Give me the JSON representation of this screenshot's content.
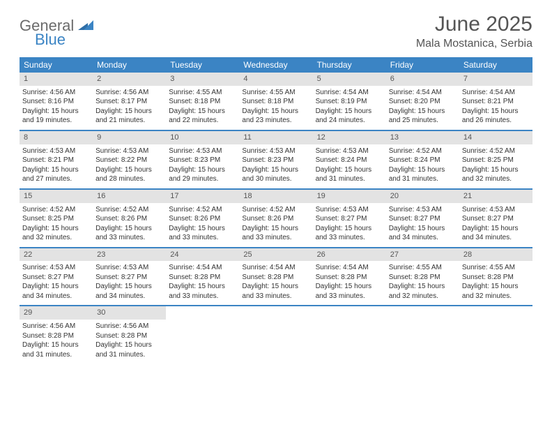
{
  "logo": {
    "part1": "General",
    "part2": "Blue"
  },
  "title": "June 2025",
  "location": "Mala Mostanica, Serbia",
  "colors": {
    "header_bg": "#3b84c4",
    "header_text": "#ffffff",
    "daynum_bg": "#e3e3e3",
    "text": "#333333",
    "title_text": "#555555",
    "logo_gray": "#6b6b6b",
    "logo_blue": "#3b84c4",
    "divider": "#3b84c4"
  },
  "weekdays": [
    "Sunday",
    "Monday",
    "Tuesday",
    "Wednesday",
    "Thursday",
    "Friday",
    "Saturday"
  ],
  "days": [
    {
      "n": 1,
      "sunrise": "4:56 AM",
      "sunset": "8:16 PM",
      "daylight": "15 hours and 19 minutes."
    },
    {
      "n": 2,
      "sunrise": "4:56 AM",
      "sunset": "8:17 PM",
      "daylight": "15 hours and 21 minutes."
    },
    {
      "n": 3,
      "sunrise": "4:55 AM",
      "sunset": "8:18 PM",
      "daylight": "15 hours and 22 minutes."
    },
    {
      "n": 4,
      "sunrise": "4:55 AM",
      "sunset": "8:18 PM",
      "daylight": "15 hours and 23 minutes."
    },
    {
      "n": 5,
      "sunrise": "4:54 AM",
      "sunset": "8:19 PM",
      "daylight": "15 hours and 24 minutes."
    },
    {
      "n": 6,
      "sunrise": "4:54 AM",
      "sunset": "8:20 PM",
      "daylight": "15 hours and 25 minutes."
    },
    {
      "n": 7,
      "sunrise": "4:54 AM",
      "sunset": "8:21 PM",
      "daylight": "15 hours and 26 minutes."
    },
    {
      "n": 8,
      "sunrise": "4:53 AM",
      "sunset": "8:21 PM",
      "daylight": "15 hours and 27 minutes."
    },
    {
      "n": 9,
      "sunrise": "4:53 AM",
      "sunset": "8:22 PM",
      "daylight": "15 hours and 28 minutes."
    },
    {
      "n": 10,
      "sunrise": "4:53 AM",
      "sunset": "8:23 PM",
      "daylight": "15 hours and 29 minutes."
    },
    {
      "n": 11,
      "sunrise": "4:53 AM",
      "sunset": "8:23 PM",
      "daylight": "15 hours and 30 minutes."
    },
    {
      "n": 12,
      "sunrise": "4:53 AM",
      "sunset": "8:24 PM",
      "daylight": "15 hours and 31 minutes."
    },
    {
      "n": 13,
      "sunrise": "4:52 AM",
      "sunset": "8:24 PM",
      "daylight": "15 hours and 31 minutes."
    },
    {
      "n": 14,
      "sunrise": "4:52 AM",
      "sunset": "8:25 PM",
      "daylight": "15 hours and 32 minutes."
    },
    {
      "n": 15,
      "sunrise": "4:52 AM",
      "sunset": "8:25 PM",
      "daylight": "15 hours and 32 minutes."
    },
    {
      "n": 16,
      "sunrise": "4:52 AM",
      "sunset": "8:26 PM",
      "daylight": "15 hours and 33 minutes."
    },
    {
      "n": 17,
      "sunrise": "4:52 AM",
      "sunset": "8:26 PM",
      "daylight": "15 hours and 33 minutes."
    },
    {
      "n": 18,
      "sunrise": "4:52 AM",
      "sunset": "8:26 PM",
      "daylight": "15 hours and 33 minutes."
    },
    {
      "n": 19,
      "sunrise": "4:53 AM",
      "sunset": "8:27 PM",
      "daylight": "15 hours and 33 minutes."
    },
    {
      "n": 20,
      "sunrise": "4:53 AM",
      "sunset": "8:27 PM",
      "daylight": "15 hours and 34 minutes."
    },
    {
      "n": 21,
      "sunrise": "4:53 AM",
      "sunset": "8:27 PM",
      "daylight": "15 hours and 34 minutes."
    },
    {
      "n": 22,
      "sunrise": "4:53 AM",
      "sunset": "8:27 PM",
      "daylight": "15 hours and 34 minutes."
    },
    {
      "n": 23,
      "sunrise": "4:53 AM",
      "sunset": "8:27 PM",
      "daylight": "15 hours and 34 minutes."
    },
    {
      "n": 24,
      "sunrise": "4:54 AM",
      "sunset": "8:28 PM",
      "daylight": "15 hours and 33 minutes."
    },
    {
      "n": 25,
      "sunrise": "4:54 AM",
      "sunset": "8:28 PM",
      "daylight": "15 hours and 33 minutes."
    },
    {
      "n": 26,
      "sunrise": "4:54 AM",
      "sunset": "8:28 PM",
      "daylight": "15 hours and 33 minutes."
    },
    {
      "n": 27,
      "sunrise": "4:55 AM",
      "sunset": "8:28 PM",
      "daylight": "15 hours and 32 minutes."
    },
    {
      "n": 28,
      "sunrise": "4:55 AM",
      "sunset": "8:28 PM",
      "daylight": "15 hours and 32 minutes."
    },
    {
      "n": 29,
      "sunrise": "4:56 AM",
      "sunset": "8:28 PM",
      "daylight": "15 hours and 31 minutes."
    },
    {
      "n": 30,
      "sunrise": "4:56 AM",
      "sunset": "8:28 PM",
      "daylight": "15 hours and 31 minutes."
    }
  ],
  "labels": {
    "sunrise": "Sunrise:",
    "sunset": "Sunset:",
    "daylight": "Daylight:"
  },
  "layout": {
    "start_weekday": 0,
    "weeks": 5,
    "cell_fontsize": 10,
    "header_fontsize": 12
  }
}
